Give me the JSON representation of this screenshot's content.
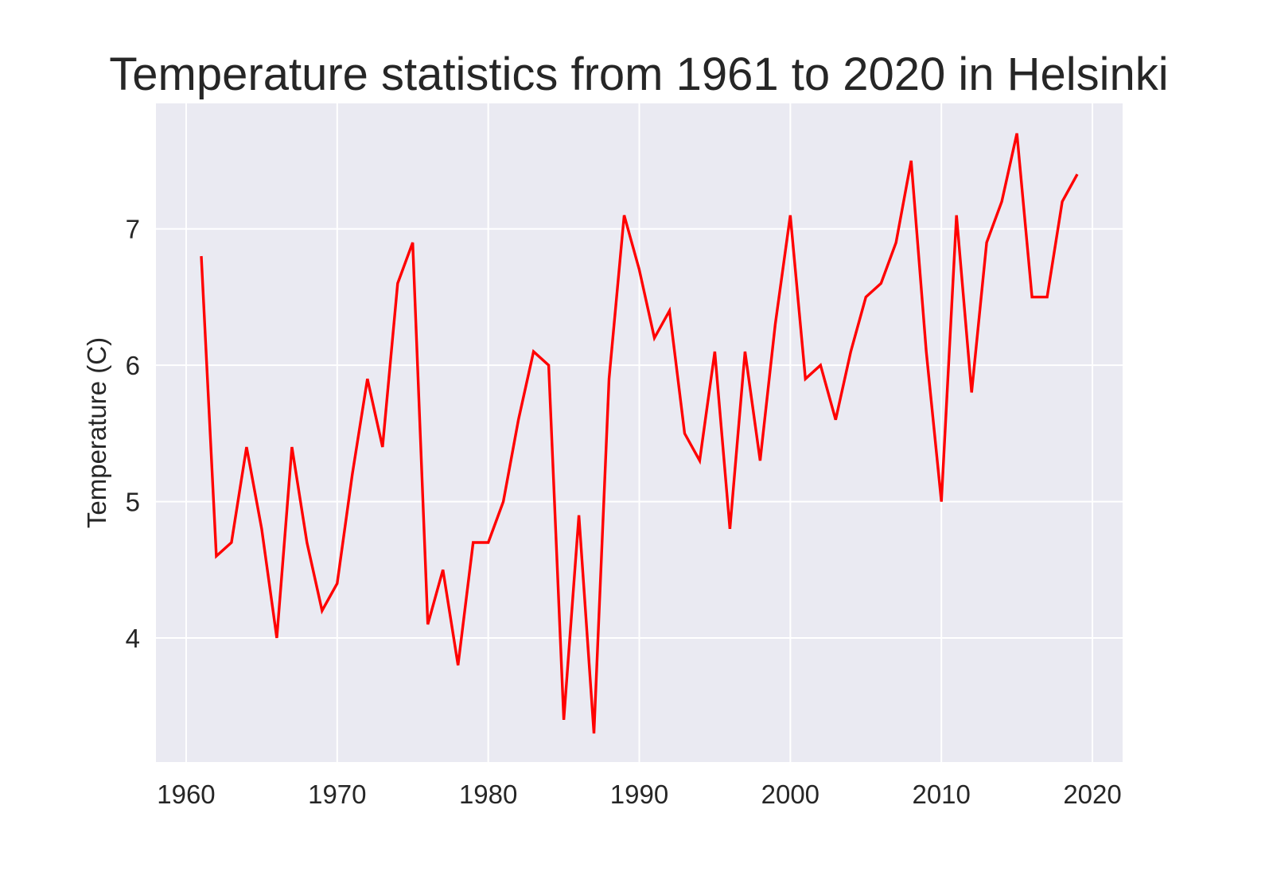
{
  "chart_data": {
    "type": "line",
    "title": "Temperature statistics from 1961 to 2020 in Helsinki",
    "xlabel": "",
    "ylabel": "Temperature (C)",
    "xlim": [
      1958,
      2022
    ],
    "ylim": [
      3.09,
      7.92
    ],
    "x_ticks": [
      1960,
      1970,
      1980,
      1990,
      2000,
      2010,
      2020
    ],
    "y_ticks": [
      4,
      5,
      6,
      7
    ],
    "grid": true,
    "legend": "none",
    "colors": {
      "background": "#eaeaf2",
      "grid": "#ffffff",
      "line": "#ff0000",
      "text": "#262626"
    },
    "series": [
      {
        "x": [
          1961,
          1962,
          1963,
          1964,
          1965,
          1966,
          1967,
          1968,
          1969,
          1970,
          1971,
          1972,
          1973,
          1974,
          1975,
          1976,
          1977,
          1978,
          1979,
          1980,
          1981,
          1982,
          1983,
          1984,
          1985,
          1986,
          1987,
          1988,
          1989,
          1990,
          1991,
          1992,
          1993,
          1994,
          1995,
          1996,
          1997,
          1998,
          1999,
          2000,
          2001,
          2002,
          2003,
          2004,
          2005,
          2006,
          2007,
          2008,
          2009,
          2010,
          2011,
          2012,
          2013,
          2014,
          2015,
          2016,
          2017,
          2018,
          2019
        ],
        "values": [
          6.8,
          4.6,
          4.7,
          5.4,
          4.8,
          4.0,
          5.4,
          4.7,
          4.2,
          4.4,
          5.2,
          5.9,
          5.4,
          6.6,
          6.9,
          4.1,
          4.5,
          3.8,
          4.7,
          4.7,
          5.0,
          5.6,
          6.1,
          6.0,
          3.4,
          4.9,
          3.3,
          5.9,
          7.1,
          6.7,
          6.2,
          6.4,
          5.5,
          5.3,
          6.1,
          4.8,
          6.1,
          5.3,
          6.3,
          7.1,
          5.9,
          6.0,
          5.6,
          6.1,
          6.5,
          6.6,
          6.9,
          7.5,
          6.1,
          5.0,
          7.1,
          5.8,
          6.9,
          7.2,
          7.7,
          6.5,
          6.5,
          7.2,
          7.4
        ]
      }
    ]
  }
}
